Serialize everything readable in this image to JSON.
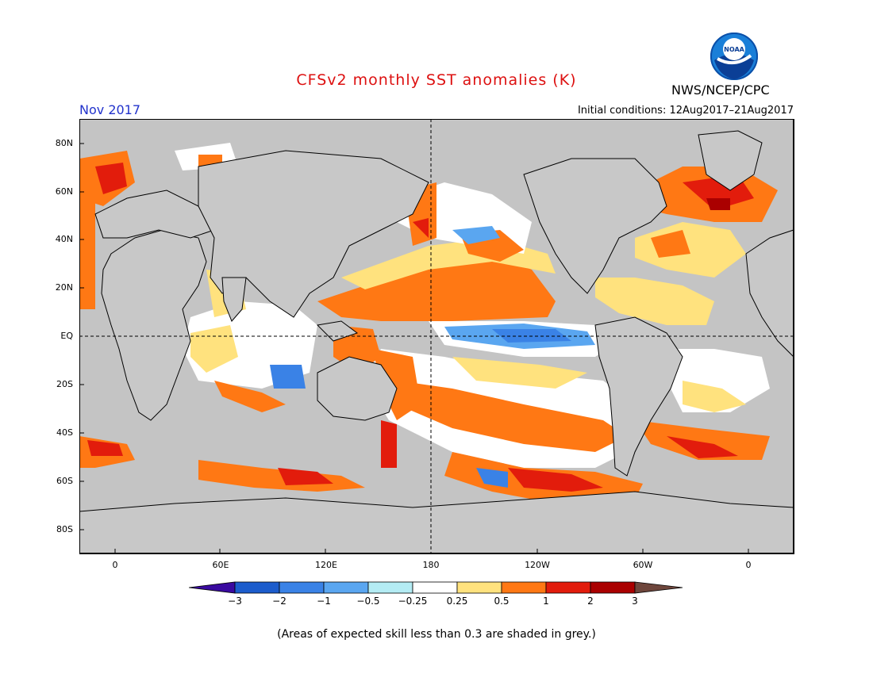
{
  "header": {
    "title": "CFSv2 monthly SST anomalies (K)",
    "month": "Nov 2017",
    "initial_conditions": "Initial conditions: 12Aug2017–21Aug2017",
    "organization": "NWS/NCEP/CPC",
    "logo_text": "NOAA"
  },
  "map": {
    "lat_labels": [
      "80N",
      "60N",
      "40N",
      "20N",
      "EQ",
      "20S",
      "40S",
      "60S",
      "80S"
    ],
    "lon_labels": [
      "0",
      "60E",
      "120E",
      "180",
      "120W",
      "60W",
      "0"
    ],
    "land_color": "#c8c8c8",
    "skill_grey_color": "#c0c0c0"
  },
  "colorbar": {
    "labels": [
      "−3",
      "−2",
      "−1",
      "−0.5",
      "−0.25",
      "0.25",
      "0.5",
      "1",
      "2",
      "3"
    ],
    "colors": [
      "#3a0aa0",
      "#1c5ccc",
      "#3a82e6",
      "#5aa6f0",
      "#b4ecf4",
      "#ffffff",
      "#ffe27e",
      "#ff7814",
      "#e21c0c",
      "#aa0000",
      "#6e463c"
    ]
  },
  "footnote": "(Areas of expected skill less than 0.3 are shaded in grey.)"
}
